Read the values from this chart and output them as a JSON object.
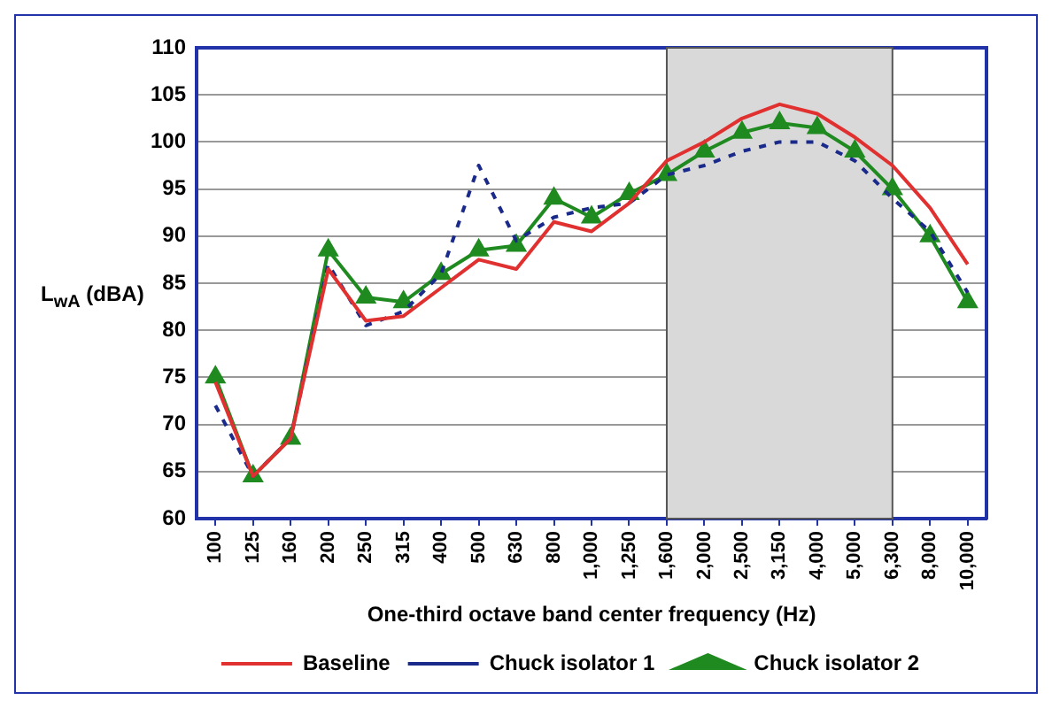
{
  "chart_data": {
    "type": "line",
    "xlabel": "One-third octave band center frequency (Hz)",
    "ylabel": "L$_{wA}$ (dBA)",
    "categories": [
      "100",
      "125",
      "160",
      "200",
      "250",
      "315",
      "400",
      "500",
      "630",
      "800",
      "1,000",
      "1,250",
      "1,600",
      "2,000",
      "2,500",
      "3,150",
      "4,000",
      "5,000",
      "6,300",
      "8,000",
      "10,000"
    ],
    "series": [
      {
        "name": "Baseline",
        "color": "#e03030",
        "line_style": "solid",
        "marker": "none",
        "values": [
          74.5,
          64.5,
          68.5,
          86.5,
          81,
          81.5,
          84.5,
          87.5,
          86.5,
          91.5,
          90.5,
          93.5,
          98,
          100,
          102.5,
          104,
          103,
          100.5,
          97.5,
          93,
          87
        ]
      },
      {
        "name": "Chuck isolator 1",
        "color": "#1a2a8a",
        "line_style": "dashed",
        "marker": "none",
        "values": [
          72,
          64.5,
          68.5,
          87,
          80.5,
          82,
          86,
          97.5,
          89.5,
          92,
          93,
          93.5,
          96.5,
          97.5,
          99,
          100,
          100,
          98,
          94,
          90.5,
          84
        ]
      },
      {
        "name": "Chuck isolator 2",
        "color": "#1f8a1f",
        "line_style": "solid",
        "marker": "triangle",
        "values": [
          75,
          64.5,
          68.5,
          88.5,
          83.5,
          83,
          86,
          88.5,
          89,
          94,
          92,
          94.5,
          96.5,
          99,
          101,
          102,
          101.5,
          99,
          95,
          90,
          83
        ]
      }
    ],
    "ylim": [
      60,
      110
    ],
    "yticks": [
      60,
      65,
      70,
      75,
      80,
      85,
      90,
      95,
      100,
      105,
      110
    ],
    "grid": "y",
    "legend": "bottom",
    "bands": [
      {
        "axis": "x",
        "from": "1,600",
        "to": "6,300",
        "color": "#d9d9d9"
      }
    ]
  }
}
